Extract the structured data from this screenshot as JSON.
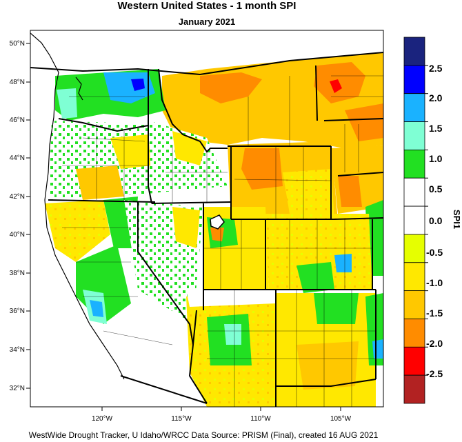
{
  "title": "Western United States - 1 month SPI",
  "subtitle": "January 2021",
  "footer": "WestWide Drought Tracker, U Idaho/WRCC Data Source: PRISM (Final), created 16 AUG 2021",
  "colorbar": {
    "title": "SPI1",
    "classes": [
      {
        "color": "#1a237e"
      },
      {
        "color": "#0000ff"
      },
      {
        "color": "#1ab2ff"
      },
      {
        "color": "#7fffd4"
      },
      {
        "color": "#22e022"
      },
      {
        "color": "#ffffff"
      },
      {
        "color": "#ffffff"
      },
      {
        "color": "#e6ff00"
      },
      {
        "color": "#ffe800"
      },
      {
        "color": "#ffc800"
      },
      {
        "color": "#ff8c00"
      },
      {
        "color": "#ff0000"
      },
      {
        "color": "#b22222"
      }
    ],
    "labels": [
      "2.5",
      "2.0",
      "1.5",
      "1.0",
      "0.5",
      "0.0",
      "-0.5",
      "-1.0",
      "-1.5",
      "-2.0",
      "-2.5"
    ]
  },
  "map": {
    "lat_labels": [
      "50°N",
      "48°N",
      "46°N",
      "44°N",
      "42°N",
      "40°N",
      "38°N",
      "36°N",
      "34°N",
      "32°N"
    ],
    "lon_labels": [
      "120°W",
      "115°W",
      "110°W",
      "105°W"
    ],
    "background_color": "#ffffff"
  }
}
